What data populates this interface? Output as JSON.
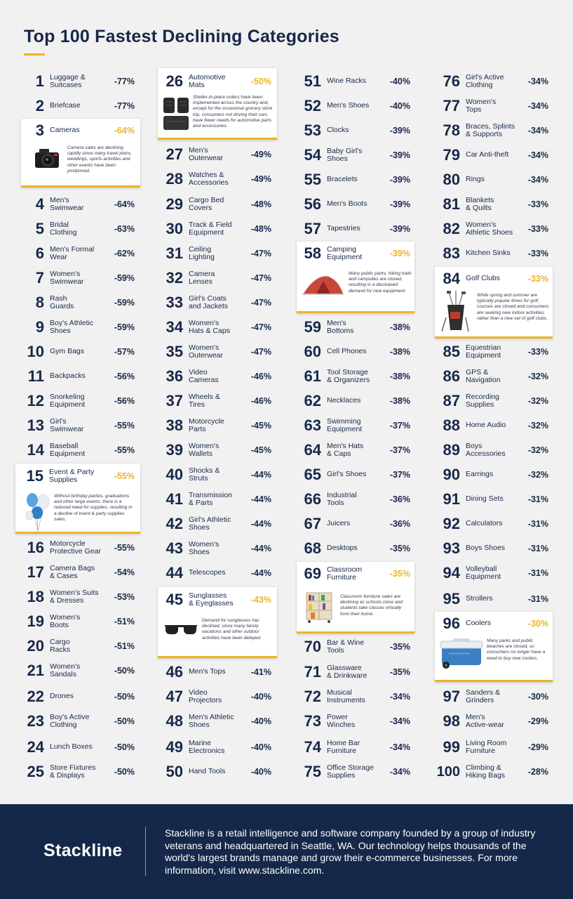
{
  "title": "Top 100 Fastest Declining Categories",
  "colors": {
    "navy": "#17284a",
    "accent": "#f0b323",
    "background": "#f1f1f1",
    "footer": "#15284a"
  },
  "col1": [
    {
      "rank": "1",
      "name": "Luggage &\nSuitcases",
      "pct": "-77%"
    },
    {
      "rank": "2",
      "name": "Briefcase",
      "pct": "-77%"
    },
    {
      "rank": "4",
      "name": "Men's\nSwimwear",
      "pct": "-64%"
    },
    {
      "rank": "5",
      "name": "Bridal\nClothing",
      "pct": "-63%"
    },
    {
      "rank": "6",
      "name": "Men's Formal\nWear",
      "pct": "-62%"
    },
    {
      "rank": "7",
      "name": "Women's\nSwimwear",
      "pct": "-59%"
    },
    {
      "rank": "8",
      "name": "Rash\nGuards",
      "pct": "-59%"
    },
    {
      "rank": "9",
      "name": "Boy's Athletic\nShoes",
      "pct": "-59%"
    },
    {
      "rank": "10",
      "name": "Gym Bags",
      "pct": "-57%"
    },
    {
      "rank": "11",
      "name": "Backpacks",
      "pct": "-56%"
    },
    {
      "rank": "12",
      "name": "Snorkeling\nEquipment",
      "pct": "-56%"
    },
    {
      "rank": "13",
      "name": "Girl's\nSwimwear",
      "pct": "-55%"
    },
    {
      "rank": "14",
      "name": "Baseball\nEquipment",
      "pct": "-55%"
    },
    {
      "rank": "16",
      "name": "Motorcycle\nProtective Gear",
      "pct": "-55%"
    },
    {
      "rank": "17",
      "name": "Camera Bags\n& Cases",
      "pct": "-54%"
    },
    {
      "rank": "18",
      "name": "Women's Suits\n& Dresses",
      "pct": "-53%"
    },
    {
      "rank": "19",
      "name": "Women's\nBoots",
      "pct": "-51%"
    },
    {
      "rank": "20",
      "name": "Cargo\nRacks",
      "pct": "-51%"
    },
    {
      "rank": "21",
      "name": "Women's\nSandals",
      "pct": "-50%"
    },
    {
      "rank": "22",
      "name": "Drones",
      "pct": "-50%"
    },
    {
      "rank": "23",
      "name": "Boy's Active\nClothing",
      "pct": "-50%"
    },
    {
      "rank": "24",
      "name": "Lunch Boxes",
      "pct": "-50%"
    },
    {
      "rank": "25",
      "name": "Store Fixtures\n& Displays",
      "pct": "-50%"
    }
  ],
  "col2": [
    {
      "rank": "27",
      "name": "Men's\nOuterwear",
      "pct": "-49%"
    },
    {
      "rank": "28",
      "name": "Watches &\nAccessories",
      "pct": "-49%"
    },
    {
      "rank": "29",
      "name": "Cargo Bed\nCovers",
      "pct": "-48%"
    },
    {
      "rank": "30",
      "name": "Track & Field\nEquipment",
      "pct": "-48%"
    },
    {
      "rank": "31",
      "name": "Ceiling\nLighting",
      "pct": "-47%"
    },
    {
      "rank": "32",
      "name": "Camera\nLenses",
      "pct": "-47%"
    },
    {
      "rank": "33",
      "name": "Girl's Coats\nand Jackets",
      "pct": "-47%"
    },
    {
      "rank": "34",
      "name": "Women's\nHats & Caps",
      "pct": "-47%"
    },
    {
      "rank": "35",
      "name": "Women's\nOuterwear",
      "pct": "-47%"
    },
    {
      "rank": "36",
      "name": "Video\nCameras",
      "pct": "-46%"
    },
    {
      "rank": "37",
      "name": "Wheels &\nTires",
      "pct": "-46%"
    },
    {
      "rank": "38",
      "name": "Motorcycle\nParts",
      "pct": "-45%"
    },
    {
      "rank": "39",
      "name": "Women's\nWallets",
      "pct": "-45%"
    },
    {
      "rank": "40",
      "name": "Shocks &\nStruts",
      "pct": "-44%"
    },
    {
      "rank": "41",
      "name": "Transmission\n& Parts",
      "pct": "-44%"
    },
    {
      "rank": "42",
      "name": "Girl's Athletic\nShoes",
      "pct": "-44%"
    },
    {
      "rank": "43",
      "name": "Women's\nShoes",
      "pct": "-44%"
    },
    {
      "rank": "44",
      "name": "Telescopes",
      "pct": "-44%"
    },
    {
      "rank": "46",
      "name": "Men's Tops",
      "pct": "-41%"
    },
    {
      "rank": "47",
      "name": "Video\nProjectors",
      "pct": "-40%"
    },
    {
      "rank": "48",
      "name": "Men's Athletic\nShoes",
      "pct": "-40%"
    },
    {
      "rank": "49",
      "name": "Marine\nElectronics",
      "pct": "-40%"
    },
    {
      "rank": "50",
      "name": "Hand Tools",
      "pct": "-40%"
    }
  ],
  "col3": [
    {
      "rank": "51",
      "name": "Wine Racks",
      "pct": "-40%"
    },
    {
      "rank": "52",
      "name": "Men's Shoes",
      "pct": "-40%"
    },
    {
      "rank": "53",
      "name": "Clocks",
      "pct": "-39%"
    },
    {
      "rank": "54",
      "name": "Baby Girl's\nShoes",
      "pct": "-39%"
    },
    {
      "rank": "55",
      "name": "Bracelets",
      "pct": "-39%"
    },
    {
      "rank": "56",
      "name": "Men's Boots",
      "pct": "-39%"
    },
    {
      "rank": "57",
      "name": "Tapestries",
      "pct": "-39%"
    },
    {
      "rank": "59",
      "name": "Men's\nBottoms",
      "pct": "-38%"
    },
    {
      "rank": "60",
      "name": "Cell Phones",
      "pct": "-38%"
    },
    {
      "rank": "61",
      "name": "Tool Storage\n& Organizers",
      "pct": "-38%"
    },
    {
      "rank": "62",
      "name": "Necklaces",
      "pct": "-38%"
    },
    {
      "rank": "63",
      "name": "Swimming\nEquipment",
      "pct": "-37%"
    },
    {
      "rank": "64",
      "name": "Men's Hats\n& Caps",
      "pct": "-37%"
    },
    {
      "rank": "65",
      "name": "Girl's Shoes",
      "pct": "-37%"
    },
    {
      "rank": "66",
      "name": "Industrial\nTools",
      "pct": "-36%"
    },
    {
      "rank": "67",
      "name": "Juicers",
      "pct": "-36%"
    },
    {
      "rank": "68",
      "name": "Desktops",
      "pct": "-35%"
    },
    {
      "rank": "70",
      "name": "Bar & Wine\nTools",
      "pct": "-35%"
    },
    {
      "rank": "71",
      "name": "Glassware\n& Drinkware",
      "pct": "-35%"
    },
    {
      "rank": "72",
      "name": "Musical\nInstruments",
      "pct": "-34%"
    },
    {
      "rank": "73",
      "name": "Power\nWinches",
      "pct": "-34%"
    },
    {
      "rank": "74",
      "name": "Home Bar\nFurniture",
      "pct": "-34%"
    },
    {
      "rank": "75",
      "name": "Office Storage\nSupplies",
      "pct": "-34%"
    }
  ],
  "col4": [
    {
      "rank": "76",
      "name": "Girl's Active\nClothing",
      "pct": "-34%"
    },
    {
      "rank": "77",
      "name": "Women's\nTops",
      "pct": "-34%"
    },
    {
      "rank": "78",
      "name": "Braces, Splints\n& Supports",
      "pct": "-34%"
    },
    {
      "rank": "79",
      "name": "Car Anti-theft",
      "pct": "-34%"
    },
    {
      "rank": "80",
      "name": "Rings",
      "pct": "-34%"
    },
    {
      "rank": "81",
      "name": "Blankets\n& Quilts",
      "pct": "-33%"
    },
    {
      "rank": "82",
      "name": "Women's\nAthletic Shoes",
      "pct": "-33%"
    },
    {
      "rank": "83",
      "name": "Kitchen Sinks",
      "pct": "-33%"
    },
    {
      "rank": "85",
      "name": "Equestrian\nEquipment",
      "pct": "-33%"
    },
    {
      "rank": "86",
      "name": "GPS &\nNavigation",
      "pct": "-32%"
    },
    {
      "rank": "87",
      "name": "Recording\nSupplies",
      "pct": "-32%"
    },
    {
      "rank": "88",
      "name": "Home Audio",
      "pct": "-32%"
    },
    {
      "rank": "89",
      "name": "Boys\nAccessories",
      "pct": "-32%"
    },
    {
      "rank": "90",
      "name": "Earrings",
      "pct": "-32%"
    },
    {
      "rank": "91",
      "name": "Dining Sets",
      "pct": "-31%"
    },
    {
      "rank": "92",
      "name": "Calculators",
      "pct": "-31%"
    },
    {
      "rank": "93",
      "name": "Boys Shoes",
      "pct": "-31%"
    },
    {
      "rank": "94",
      "name": "Volleyball\nEquipment",
      "pct": "-31%"
    },
    {
      "rank": "95",
      "name": "Strollers",
      "pct": "-31%"
    },
    {
      "rank": "97",
      "name": "Sanders &\nGrinders",
      "pct": "-30%"
    },
    {
      "rank": "98",
      "name": "Men's\nActive-wear",
      "pct": "-29%"
    },
    {
      "rank": "99",
      "name": "Living Room\nFurniture",
      "pct": "-29%"
    },
    {
      "rank": "100",
      "name": "Climbing &\nHiking Bags",
      "pct": "-28%"
    }
  ],
  "cards": {
    "c3": {
      "rank": "3",
      "name": "Cameras",
      "pct": "-64%",
      "desc": "Camera sales are declining rapidly since many travel plans, weddings, sports activities and other events have been postponed.",
      "icon": "camera-icon"
    },
    "c15": {
      "rank": "15",
      "name": "Event & Party\nSupplies",
      "pct": "-55%",
      "desc": "Without birthday parties, graduations and other large events, there is a reduced need for supplies, resulting in a decline of event & party supplies sales.",
      "icon": "balloons-icon"
    },
    "c26": {
      "rank": "26",
      "name": "Automotive\nMats",
      "pct": "-50%",
      "desc": "Shelter-in-place orders have been implemented across the country and, except for the occasional grocery store trip, consumers not driving their cars have fewer needs for automotive parts and accessories.",
      "icon": "car-mats-icon"
    },
    "c45": {
      "rank": "45",
      "name": "Sunglasses\n& Eyeglasses",
      "pct": "-43%",
      "desc": "Demand for sunglasses has declined, since many family vacations and other outdoor activities have been delayed.",
      "icon": "sunglasses-icon"
    },
    "c58": {
      "rank": "58",
      "name": "Camping\nEquipment",
      "pct": "-39%",
      "desc": "Many public parks, hiking trails and campsites are closed, resulting in a decreased demand for new equipment.",
      "icon": "tent-icon"
    },
    "c69": {
      "rank": "69",
      "name": "Classroom\nFurniture",
      "pct": "-35%",
      "desc": "Classroom furniture sales are declining as schools close and students take classes virtually from their home.",
      "icon": "shelf-icon"
    },
    "c84": {
      "rank": "84",
      "name": "Golf Clubs",
      "pct": "-33%",
      "desc": "While spring and summer are typically popular times for golf, courses are closed and consumers are seeking new indoor activities, rather than a new set of golf clubs.",
      "icon": "golf-bag-icon"
    },
    "c96": {
      "rank": "96",
      "name": "Coolers",
      "pct": "-30%",
      "desc": "Many parks and public beaches are closed, so consumers no longer have a need to buy new coolers.",
      "icon": "cooler-icon"
    }
  },
  "footer": {
    "logo": "Stackline",
    "text": "Stackline is a retail intelligence and software company founded by a group of industry veterans and headquartered in Seattle, WA. Our technology helps thousands of the world's largest brands manage and grow their e-commerce businesses. For more information, visit www.stackline.com."
  }
}
